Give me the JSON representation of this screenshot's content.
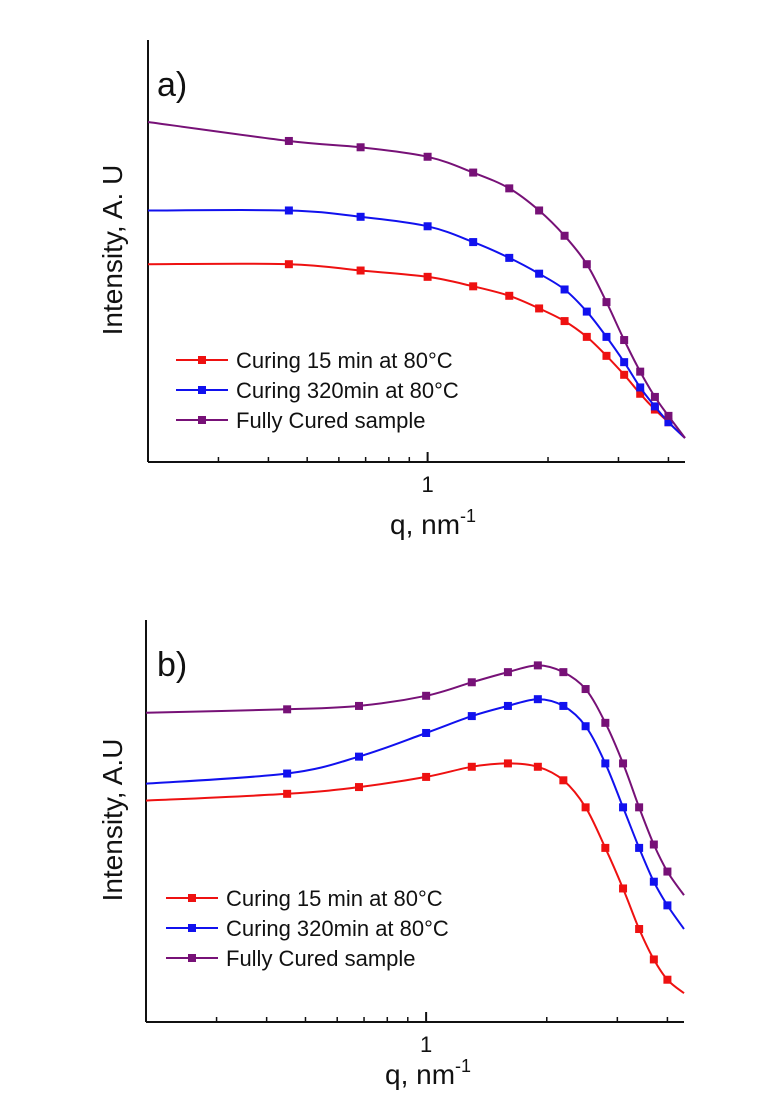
{
  "colors": {
    "series_1": "#ee1111",
    "series_2": "#1111ee",
    "series_3": "#771177",
    "axis": "#111111"
  },
  "chart_data": [
    {
      "type": "line",
      "panel_label": "a)",
      "xlabel": "q, nm",
      "xlabel_sup": "-1",
      "ylabel": "Intensity, A. U",
      "x_scale": "log",
      "y_scale": "log",
      "x_ticks_major": [
        1
      ],
      "x_tick_labels": [
        "1"
      ],
      "y_ticks": "none",
      "xlim": [
        0.2,
        4.4
      ],
      "ylim": [
        0,
        1
      ],
      "grid": false,
      "legend_position": "bottom-left",
      "series": [
        {
          "name": "Curing 15 min at 80°C",
          "color": "#ee1111",
          "x": [
            0.2,
            0.45,
            0.68,
            1.0,
            1.3,
            1.6,
            1.9,
            2.2,
            2.5,
            2.8,
            3.1,
            3.4,
            3.7,
            4.0,
            4.4
          ],
          "y": [
            0.55,
            0.55,
            0.53,
            0.51,
            0.48,
            0.45,
            0.41,
            0.37,
            0.32,
            0.26,
            0.2,
            0.14,
            0.09,
            0.05,
            0.0
          ]
        },
        {
          "name": "Curing 320min at 80°C",
          "color": "#1111ee",
          "x": [
            0.2,
            0.45,
            0.68,
            1.0,
            1.3,
            1.6,
            1.9,
            2.2,
            2.5,
            2.8,
            3.1,
            3.4,
            3.7,
            4.0,
            4.4
          ],
          "y": [
            0.72,
            0.72,
            0.7,
            0.67,
            0.62,
            0.57,
            0.52,
            0.47,
            0.4,
            0.32,
            0.24,
            0.16,
            0.1,
            0.05,
            0.0
          ]
        },
        {
          "name": "Fully Cured sample",
          "color": "#771177",
          "x": [
            0.2,
            0.45,
            0.68,
            1.0,
            1.3,
            1.6,
            1.9,
            2.2,
            2.5,
            2.8,
            3.1,
            3.4,
            3.7,
            4.0,
            4.4
          ],
          "y": [
            1.0,
            0.94,
            0.92,
            0.89,
            0.84,
            0.79,
            0.72,
            0.64,
            0.55,
            0.43,
            0.31,
            0.21,
            0.13,
            0.07,
            0.0
          ]
        }
      ]
    },
    {
      "type": "line",
      "panel_label": "b)",
      "xlabel": "q, nm",
      "xlabel_sup": "-1",
      "ylabel": "Intensity, A.U",
      "x_scale": "log",
      "y_scale": "log",
      "x_ticks_major": [
        1
      ],
      "x_tick_labels": [
        "1"
      ],
      "y_ticks": "none",
      "xlim": [
        0.2,
        4.4
      ],
      "ylim": [
        0,
        1
      ],
      "grid": false,
      "legend_position": "bottom-left",
      "series": [
        {
          "name": "Curing 15 min at 80°C",
          "color": "#ee1111",
          "x": [
            0.2,
            0.45,
            0.68,
            1.0,
            1.3,
            1.6,
            1.9,
            2.2,
            2.5,
            2.8,
            3.1,
            3.4,
            3.7,
            4.0,
            4.4
          ],
          "y": [
            0.59,
            0.61,
            0.63,
            0.66,
            0.69,
            0.7,
            0.69,
            0.65,
            0.57,
            0.45,
            0.33,
            0.21,
            0.12,
            0.06,
            0.02
          ]
        },
        {
          "name": "Curing 320min at 80°C",
          "color": "#1111ee",
          "x": [
            0.2,
            0.45,
            0.68,
            1.0,
            1.3,
            1.6,
            1.9,
            2.2,
            2.5,
            2.8,
            3.1,
            3.4,
            3.7,
            4.0,
            4.4
          ],
          "y": [
            0.64,
            0.67,
            0.72,
            0.79,
            0.84,
            0.87,
            0.89,
            0.87,
            0.81,
            0.7,
            0.57,
            0.45,
            0.35,
            0.28,
            0.21
          ]
        },
        {
          "name": "Fully Cured sample",
          "color": "#771177",
          "x": [
            0.2,
            0.45,
            0.68,
            1.0,
            1.3,
            1.6,
            1.9,
            2.2,
            2.5,
            2.8,
            3.1,
            3.4,
            3.7,
            4.0,
            4.4
          ],
          "y": [
            0.85,
            0.86,
            0.87,
            0.9,
            0.94,
            0.97,
            0.99,
            0.97,
            0.92,
            0.82,
            0.7,
            0.57,
            0.46,
            0.38,
            0.31
          ]
        }
      ]
    }
  ]
}
